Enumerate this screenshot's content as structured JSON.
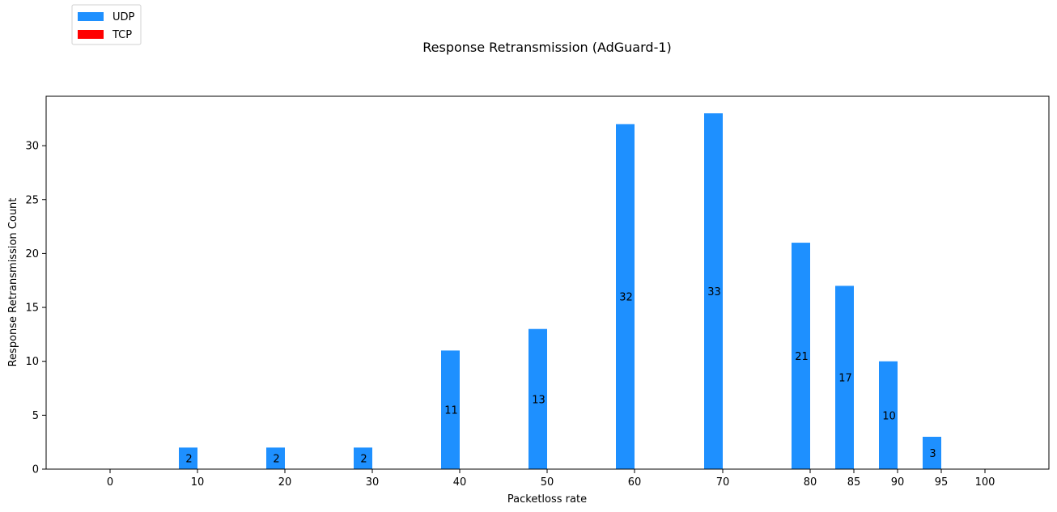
{
  "chart_data": {
    "type": "bar",
    "title": "Response Retransmission (AdGuard-1)",
    "xlabel": "Packetloss rate",
    "ylabel": "Response Retransmission Count",
    "categories": [
      "0",
      "10",
      "20",
      "30",
      "40",
      "50",
      "60",
      "70",
      "80",
      "85",
      "90",
      "95",
      "100"
    ],
    "series": [
      {
        "name": "UDP",
        "color": "#1e90ff",
        "values": [
          0,
          2,
          2,
          2,
          11,
          13,
          32,
          33,
          21,
          17,
          10,
          3,
          0
        ]
      },
      {
        "name": "TCP",
        "color": "#ff0000",
        "values": [
          0,
          0,
          0,
          0,
          0,
          0,
          0,
          0,
          0,
          0,
          0,
          0,
          0
        ]
      }
    ],
    "data_labels": [
      "",
      "2",
      "2",
      "2",
      "11",
      "13",
      "32",
      "33",
      "21",
      "17",
      "10",
      "3",
      ""
    ],
    "yticks": [
      0,
      5,
      10,
      15,
      20,
      25,
      30
    ],
    "ylim": [
      0,
      34.5
    ],
    "grid": false,
    "legend_position": "top-left, outside plot"
  }
}
